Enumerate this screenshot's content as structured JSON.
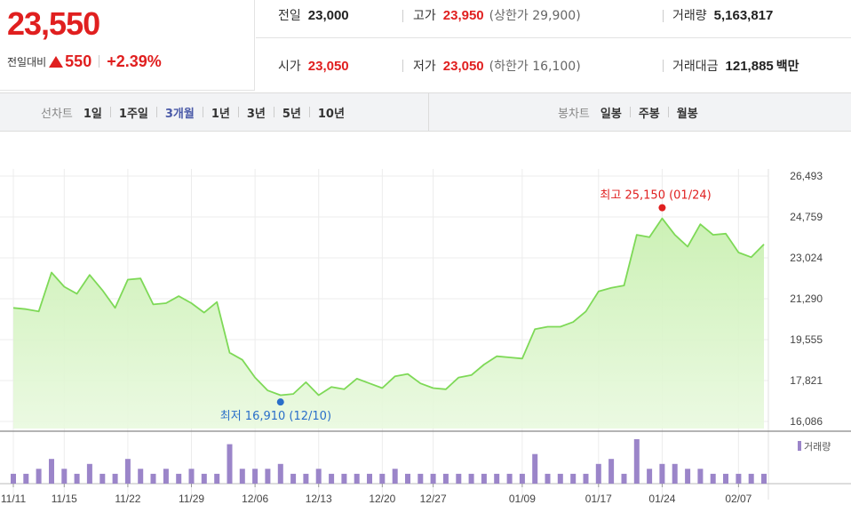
{
  "quote": {
    "price": "23,550",
    "change_label": "전일대비",
    "change_amount": "550",
    "change_rate": "+2.39%"
  },
  "stats": {
    "prev_close_label": "전일",
    "prev_close": "23,000",
    "open_label": "시가",
    "open": "23,050",
    "high_label": "고가",
    "high": "23,950",
    "high_limit": "(상한가 29,900)",
    "low_label": "저가",
    "low": "23,050",
    "low_limit": "(하한가 16,100)",
    "volume_label": "거래량",
    "volume": "5,163,817",
    "amount_label": "거래대금",
    "amount": "121,885",
    "amount_unit": "백만"
  },
  "toolbar": {
    "line_chart_label": "선차트",
    "periods": [
      "1일",
      "1주일",
      "3개월",
      "1년",
      "3년",
      "5년",
      "10년"
    ],
    "active_period": "3개월",
    "candle_chart_label": "봉차트",
    "candles": [
      "일봉",
      "주봉",
      "월봉"
    ]
  },
  "colors": {
    "up": "#e01f1f",
    "low_marker": "#2a6fc9",
    "price_line": "#7ed957",
    "price_fill_top": "#c9f0b1",
    "volume_bar": "#9b85c9",
    "active_tab": "#4a5aa8"
  },
  "chart_data": {
    "type": "line",
    "title": "",
    "xlabel": "",
    "ylabel": "",
    "ylim": [
      16086,
      26493
    ],
    "y_ticks": [
      "26,493",
      "24,759",
      "23,024",
      "21,290",
      "19,555",
      "17,821",
      "16,086"
    ],
    "y_tick_values": [
      26493,
      24759,
      23024,
      21290,
      19555,
      17821,
      16086
    ],
    "x_ticks": [
      "11/11",
      "11/15",
      "11/22",
      "11/29",
      "12/06",
      "12/13",
      "12/20",
      "12/27",
      "01/09",
      "01/17",
      "01/24",
      "02/07"
    ],
    "x_tick_index": [
      0,
      4,
      9,
      14,
      19,
      24,
      29,
      33,
      40,
      46,
      51,
      57
    ],
    "series": [
      {
        "values": [
          20900,
          20850,
          20750,
          22400,
          21800,
          21500,
          22300,
          21650,
          20900,
          22100,
          22150,
          21050,
          21100,
          21400,
          21100,
          20700,
          21150,
          19000,
          18700,
          17950,
          17400,
          17200,
          17250,
          17750,
          17200,
          17550,
          17450,
          17900,
          17700,
          17500,
          18000,
          18100,
          17700,
          17500,
          17450,
          17950,
          18050,
          18500,
          18850,
          18800,
          18750,
          20000,
          20100,
          20100,
          20300,
          20750,
          21600,
          21750,
          21850,
          24000,
          23900,
          24700,
          24000,
          23500,
          24450,
          24000,
          24050,
          23250,
          23050,
          23600
        ]
      }
    ],
    "annotations": {
      "high": {
        "text": "최고 25,150 (01/24)",
        "index": 51,
        "value": 25150
      },
      "low": {
        "text": "최저 16,910 (12/10)",
        "index": 21,
        "value": 16910
      }
    },
    "volume": {
      "legend": "거래량",
      "values": [
        2,
        2,
        3,
        5,
        3,
        2,
        4,
        2,
        2,
        5,
        3,
        2,
        3,
        2,
        3,
        2,
        2,
        8,
        3,
        3,
        3,
        4,
        2,
        2,
        3,
        2,
        2,
        2,
        2,
        2,
        3,
        2,
        2,
        2,
        2,
        2,
        2,
        2,
        2,
        2,
        2,
        6,
        2,
        2,
        2,
        2,
        4,
        5,
        2,
        9,
        3,
        4,
        4,
        3,
        3,
        2,
        2,
        2,
        2,
        2
      ]
    }
  }
}
